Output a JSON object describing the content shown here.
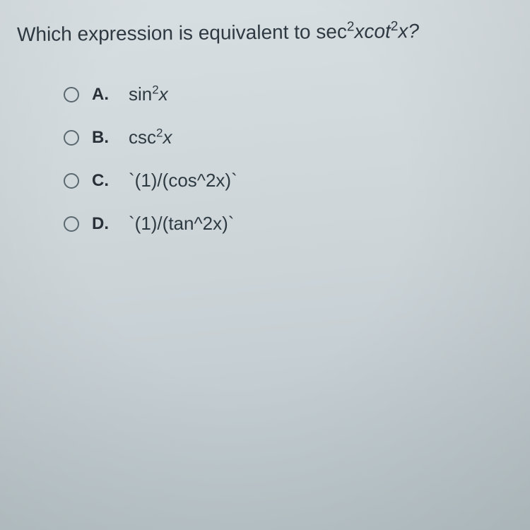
{
  "question": {
    "prefix": "Which expression is equivalent to ",
    "expr_a": "sec",
    "sup_a": "2",
    "expr_b": "xcot",
    "sup_b": "2",
    "expr_c": "x?"
  },
  "options": [
    {
      "letter": "A.",
      "fn": "sin",
      "sup": "2",
      "var": "x",
      "kind": "math"
    },
    {
      "letter": "B.",
      "fn": "csc",
      "sup": "2",
      "var": "x",
      "kind": "math"
    },
    {
      "letter": "C.",
      "text": "`(1)/(cos^2x)`",
      "kind": "code"
    },
    {
      "letter": "D.",
      "text": "`(1)/(tan^2x)`",
      "kind": "code"
    }
  ],
  "styling": {
    "bg_colors": [
      "#d8dfe2",
      "#ccd4d8",
      "#b8c4c8"
    ],
    "text_color": "#2e3942",
    "radio_border": "#5a6870",
    "question_fontsize": 28,
    "option_fontsize": 26,
    "letter_fontsize": 24
  }
}
